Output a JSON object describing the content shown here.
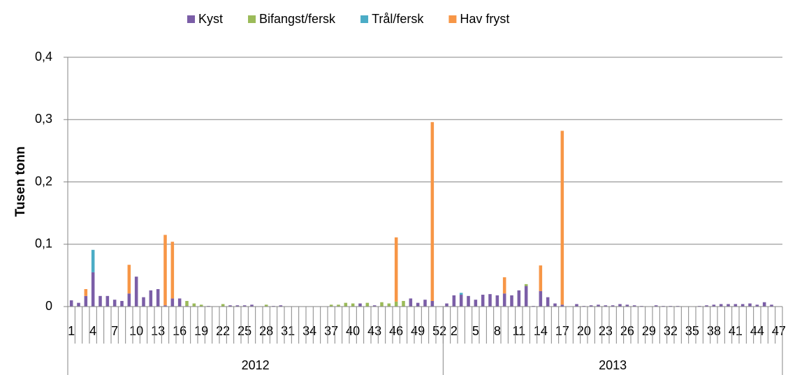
{
  "chart_data": {
    "type": "stacked_bar",
    "y_label": "Tusen tonn",
    "categories": [
      "1",
      null,
      null,
      "4",
      null,
      null,
      "7",
      null,
      null,
      "10",
      null,
      null,
      "13",
      null,
      null,
      "16",
      null,
      null,
      "19",
      null,
      null,
      "22",
      null,
      null,
      "25",
      null,
      null,
      "28",
      null,
      null,
      "31",
      null,
      null,
      "34",
      null,
      null,
      "37",
      null,
      null,
      "40",
      null,
      null,
      "43",
      null,
      null,
      "46",
      null,
      null,
      "49",
      null,
      null,
      "52",
      null,
      "2",
      null,
      null,
      "5",
      null,
      null,
      "8",
      null,
      null,
      "11",
      null,
      null,
      "14",
      null,
      null,
      "17",
      null,
      null,
      "20",
      null,
      null,
      "23",
      null,
      null,
      "26",
      null,
      null,
      "29",
      null,
      null,
      "32",
      null,
      null,
      "35",
      null,
      null,
      "38",
      null,
      null,
      "41",
      null,
      null,
      "44",
      null,
      null,
      "47"
    ],
    "groups": [
      {
        "name": "2012",
        "size": 52
      },
      {
        "name": "2013",
        "size": 47
      }
    ],
    "series": [
      {
        "name": "Kyst",
        "color": "#7b5ea7",
        "values": [
          0.01,
          0.006,
          0.017,
          0.055,
          0.017,
          0.017,
          0.011,
          0.009,
          0.021,
          0.048,
          0.015,
          0.026,
          0.028,
          0.002,
          0.013,
          0.013,
          0.001,
          0,
          0,
          0.001,
          0,
          0,
          0.002,
          0.002,
          0.002,
          0.003,
          0,
          0,
          0.001,
          0.002,
          0,
          0,
          0,
          0,
          0,
          0,
          0,
          0,
          0,
          0,
          0.005,
          0,
          0.002,
          0,
          0,
          0,
          0,
          0.013,
          0.006,
          0.011,
          0.009,
          0,
          0.005,
          0.018,
          0.019,
          0.017,
          0.011,
          0.019,
          0.02,
          0.018,
          0.021,
          0.018,
          0.026,
          0.033,
          0.001,
          0.025,
          0.015,
          0.005,
          0.003,
          0,
          0.004,
          0.001,
          0.002,
          0.003,
          0.002,
          0.002,
          0.004,
          0.003,
          0.002,
          0.001,
          0,
          0.002,
          0.001,
          0.001,
          0.001,
          0,
          0,
          0.001,
          0.002,
          0.003,
          0.004,
          0.004,
          0.004,
          0.004,
          0.005,
          0.003,
          0.007,
          0.003,
          0
        ]
      },
      {
        "name": "Bifangst/fersk",
        "color": "#9bbb59",
        "values": [
          0,
          0,
          0,
          0,
          0,
          0,
          0,
          0,
          0,
          0,
          0,
          0,
          0,
          0,
          0,
          0,
          0.008,
          0.005,
          0.003,
          0,
          0,
          0.004,
          0,
          0,
          0,
          0,
          0,
          0.003,
          0,
          0,
          0,
          0,
          0,
          0,
          0,
          0,
          0.003,
          0.003,
          0.006,
          0.005,
          0,
          0.006,
          0,
          0.007,
          0.005,
          0.008,
          0.009,
          0,
          0,
          0,
          0,
          0,
          0,
          0,
          0,
          0,
          0,
          0,
          0,
          0,
          0,
          0,
          0,
          0.003,
          0,
          0,
          0,
          0,
          0,
          0,
          0,
          0,
          0,
          0,
          0,
          0,
          0,
          0,
          0,
          0,
          0,
          0,
          0,
          0,
          0,
          0,
          0,
          0,
          0,
          0,
          0,
          0,
          0,
          0,
          0,
          0,
          0,
          0,
          0
        ]
      },
      {
        "name": "Trål/fersk",
        "color": "#4bacc6",
        "values": [
          0,
          0,
          0,
          0.036,
          0,
          0,
          0,
          0,
          0,
          0,
          0,
          0,
          0,
          0,
          0,
          0,
          0,
          0,
          0,
          0,
          0,
          0,
          0,
          0,
          0,
          0,
          0,
          0,
          0,
          0,
          0,
          0,
          0,
          0,
          0,
          0,
          0,
          0,
          0,
          0,
          0,
          0,
          0,
          0,
          0,
          0,
          0,
          0,
          0,
          0,
          0,
          0,
          0,
          0,
          0.003,
          0,
          0,
          0,
          0,
          0,
          0,
          0,
          0,
          0,
          0,
          0,
          0,
          0,
          0,
          0,
          0,
          0,
          0,
          0,
          0,
          0,
          0,
          0,
          0,
          0,
          0,
          0,
          0,
          0,
          0,
          0,
          0,
          0,
          0,
          0,
          0,
          0,
          0,
          0,
          0,
          0,
          0,
          0,
          0
        ]
      },
      {
        "name": "Hav fryst",
        "color": "#f79646",
        "values": [
          0,
          0,
          0.011,
          0,
          0,
          0,
          0,
          0,
          0.046,
          0,
          0,
          0,
          0,
          0.113,
          0.091,
          0,
          0,
          0,
          0,
          0,
          0,
          0,
          0,
          0,
          0,
          0,
          0,
          0,
          0,
          0,
          0,
          0,
          0,
          0,
          0,
          0,
          0,
          0,
          0,
          0,
          0,
          0,
          0,
          0,
          0,
          0.103,
          0,
          0,
          0,
          0,
          0.287,
          0,
          0,
          0,
          0,
          0,
          0,
          0,
          0,
          0,
          0.026,
          0,
          0,
          0,
          0,
          0.041,
          0,
          0,
          0.279,
          0,
          0,
          0,
          0,
          0,
          0,
          0,
          0,
          0,
          0,
          0,
          0,
          0,
          0,
          0,
          0,
          0,
          0,
          0,
          0,
          0,
          0,
          0,
          0,
          0,
          0,
          0,
          0,
          0,
          0
        ]
      }
    ],
    "ylim": [
      0,
      0.4
    ],
    "yticks": [
      0,
      {
        "value": 0.1,
        "label": "0,1"
      },
      {
        "value": 0.2,
        "label": "0,2"
      },
      {
        "value": 0.3,
        "label": "0,3"
      },
      {
        "value": 0.4,
        "label": "0,4"
      }
    ],
    "grid": true,
    "legend": "top"
  }
}
